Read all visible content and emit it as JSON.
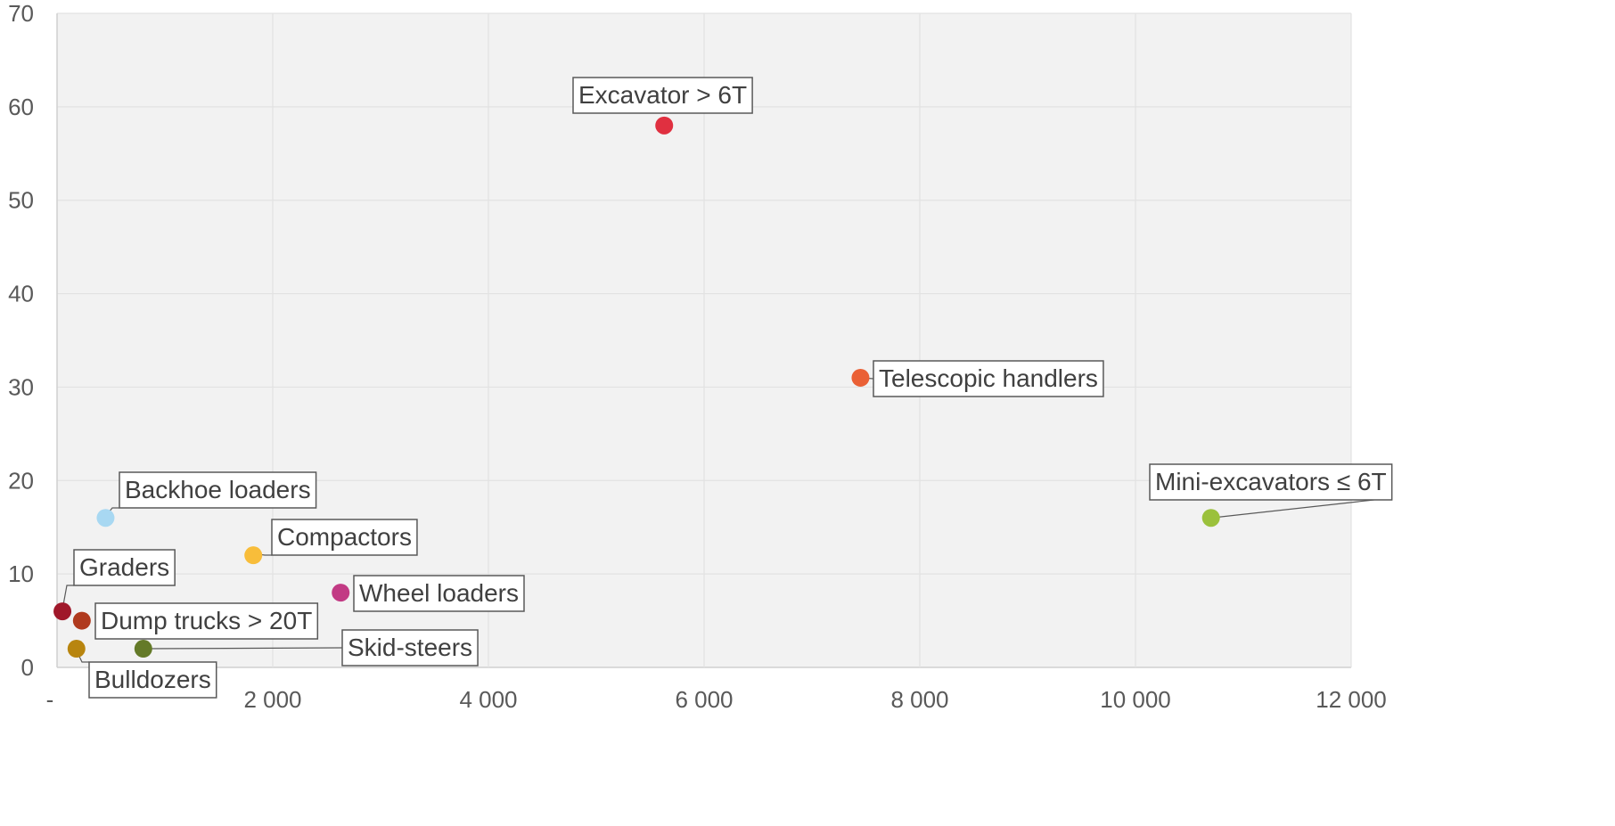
{
  "chart_data": {
    "type": "scatter",
    "title": "",
    "xlabel": "",
    "ylabel": "",
    "xlim": [
      0,
      12000
    ],
    "ylim": [
      0,
      70
    ],
    "x_ticks": [
      0,
      2000,
      4000,
      6000,
      8000,
      10000,
      12000
    ],
    "x_tick_labels": [
      "-",
      "2 000",
      "4 000",
      "6 000",
      "8 000",
      "10 000",
      "12 000"
    ],
    "y_ticks": [
      0,
      10,
      20,
      30,
      40,
      50,
      60,
      70
    ],
    "y_tick_labels": [
      "0",
      "10",
      "20",
      "30",
      "40",
      "50",
      "60",
      "70"
    ],
    "grid": true,
    "plot_background": "#f2f2f2",
    "points": [
      {
        "label": "Excavator > 6T",
        "x": 5630,
        "y": 58,
        "color": "#e03040"
      },
      {
        "label": "Telescopic handlers",
        "x": 7450,
        "y": 31,
        "color": "#ea6035"
      },
      {
        "label": "Mini-excavators ≤ 6T",
        "x": 10700,
        "y": 16,
        "color": "#9bc13c"
      },
      {
        "label": "Backhoe loaders",
        "x": 450,
        "y": 16,
        "color": "#a8d8f2"
      },
      {
        "label": "Compactors",
        "x": 1820,
        "y": 12,
        "color": "#f8bd3a"
      },
      {
        "label": "Wheel loaders",
        "x": 2630,
        "y": 8,
        "color": "#c23a84"
      },
      {
        "label": "Graders",
        "x": 50,
        "y": 6,
        "color": "#a0182a"
      },
      {
        "label": "Dump trucks > 20T",
        "x": 230,
        "y": 5,
        "color": "#b03a1e"
      },
      {
        "label": "Bulldozers",
        "x": 180,
        "y": 2,
        "color": "#b8850f"
      },
      {
        "label": "Skid-steers",
        "x": 800,
        "y": 2,
        "color": "#647a28"
      }
    ]
  }
}
